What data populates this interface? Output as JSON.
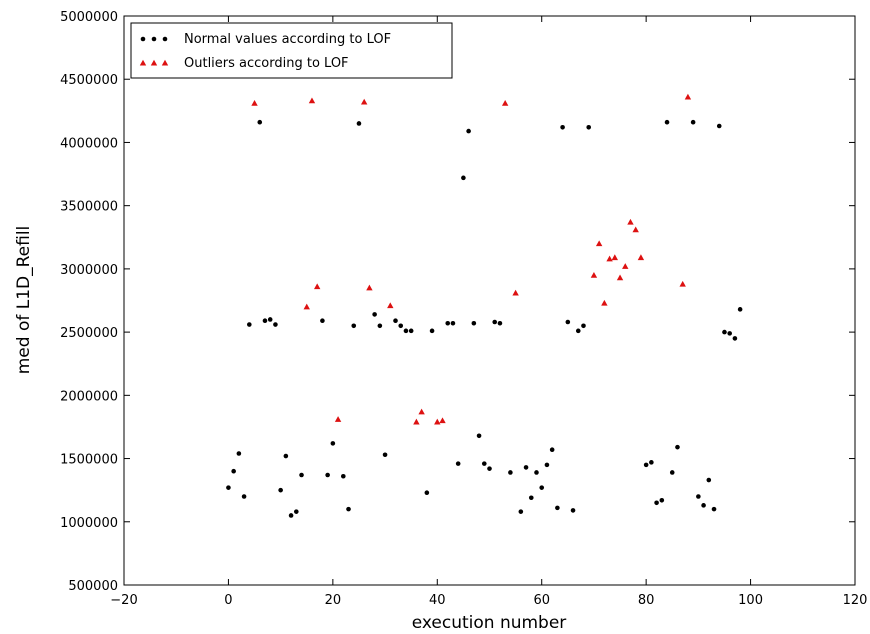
{
  "chart_data": {
    "type": "scatter",
    "title": "",
    "xlabel": "execution number",
    "ylabel": "med of L1D_Refill",
    "xlim": [
      -20,
      120
    ],
    "ylim": [
      500000,
      5000000
    ],
    "xticks": [
      -20,
      0,
      20,
      40,
      60,
      80,
      100,
      120
    ],
    "yticks": [
      500000,
      1000000,
      1500000,
      2000000,
      2500000,
      3000000,
      3500000,
      4000000,
      4500000,
      5000000
    ],
    "xtick_labels": [
      "−20",
      "0",
      "20",
      "40",
      "60",
      "80",
      "100",
      "120"
    ],
    "ytick_labels": [
      "500000",
      "1000000",
      "1500000",
      "2000000",
      "2500000",
      "3000000",
      "3500000",
      "4000000",
      "4500000",
      "5000000"
    ],
    "grid": false,
    "legend_position": "top-left",
    "series": [
      {
        "name": "Normal values according to LOF",
        "color": "#000000",
        "marker": "circle",
        "points": [
          [
            0,
            1270000
          ],
          [
            1,
            1400000
          ],
          [
            2,
            1540000
          ],
          [
            3,
            1200000
          ],
          [
            4,
            2560000
          ],
          [
            6,
            4160000
          ],
          [
            7,
            2590000
          ],
          [
            8,
            2600000
          ],
          [
            9,
            2560000
          ],
          [
            10,
            1250000
          ],
          [
            11,
            1520000
          ],
          [
            12,
            1050000
          ],
          [
            13,
            1080000
          ],
          [
            14,
            1370000
          ],
          [
            18,
            2590000
          ],
          [
            19,
            1370000
          ],
          [
            20,
            1620000
          ],
          [
            22,
            1360000
          ],
          [
            23,
            1100000
          ],
          [
            24,
            2550000
          ],
          [
            25,
            4150000
          ],
          [
            28,
            2640000
          ],
          [
            29,
            2550000
          ],
          [
            30,
            1530000
          ],
          [
            32,
            2590000
          ],
          [
            33,
            2550000
          ],
          [
            34,
            2510000
          ],
          [
            35,
            2510000
          ],
          [
            38,
            1230000
          ],
          [
            39,
            2510000
          ],
          [
            42,
            2570000
          ],
          [
            43,
            2570000
          ],
          [
            44,
            1460000
          ],
          [
            45,
            3720000
          ],
          [
            46,
            4090000
          ],
          [
            47,
            2570000
          ],
          [
            48,
            1680000
          ],
          [
            49,
            1460000
          ],
          [
            50,
            1420000
          ],
          [
            51,
            2580000
          ],
          [
            52,
            2570000
          ],
          [
            54,
            1390000
          ],
          [
            56,
            1080000
          ],
          [
            57,
            1430000
          ],
          [
            58,
            1190000
          ],
          [
            59,
            1390000
          ],
          [
            60,
            1270000
          ],
          [
            61,
            1450000
          ],
          [
            62,
            1570000
          ],
          [
            63,
            1110000
          ],
          [
            64,
            4120000
          ],
          [
            65,
            2580000
          ],
          [
            66,
            1090000
          ],
          [
            67,
            2510000
          ],
          [
            68,
            2550000
          ],
          [
            69,
            4120000
          ],
          [
            80,
            1450000
          ],
          [
            81,
            1470000
          ],
          [
            82,
            1150000
          ],
          [
            83,
            1170000
          ],
          [
            84,
            4160000
          ],
          [
            85,
            1390000
          ],
          [
            86,
            1590000
          ],
          [
            89,
            4160000
          ],
          [
            90,
            1200000
          ],
          [
            91,
            1130000
          ],
          [
            92,
            1330000
          ],
          [
            93,
            1100000
          ],
          [
            94,
            4130000
          ],
          [
            95,
            2500000
          ],
          [
            96,
            2490000
          ],
          [
            97,
            2450000
          ],
          [
            98,
            2680000
          ]
        ]
      },
      {
        "name": "Outliers according to LOF",
        "color": "#dd1111",
        "marker": "triangle",
        "points": [
          [
            5,
            4310000
          ],
          [
            15,
            2700000
          ],
          [
            16,
            4330000
          ],
          [
            17,
            2860000
          ],
          [
            21,
            1810000
          ],
          [
            26,
            4320000
          ],
          [
            27,
            2850000
          ],
          [
            31,
            2710000
          ],
          [
            36,
            1790000
          ],
          [
            37,
            1870000
          ],
          [
            40,
            1790000
          ],
          [
            41,
            1800000
          ],
          [
            53,
            4310000
          ],
          [
            55,
            2810000
          ],
          [
            70,
            2950000
          ],
          [
            71,
            3200000
          ],
          [
            72,
            2730000
          ],
          [
            73,
            3080000
          ],
          [
            74,
            3090000
          ],
          [
            75,
            2930000
          ],
          [
            76,
            3020000
          ],
          [
            77,
            3370000
          ],
          [
            78,
            3310000
          ],
          [
            79,
            3090000
          ],
          [
            87,
            2880000
          ],
          [
            88,
            4360000
          ]
        ]
      }
    ]
  }
}
